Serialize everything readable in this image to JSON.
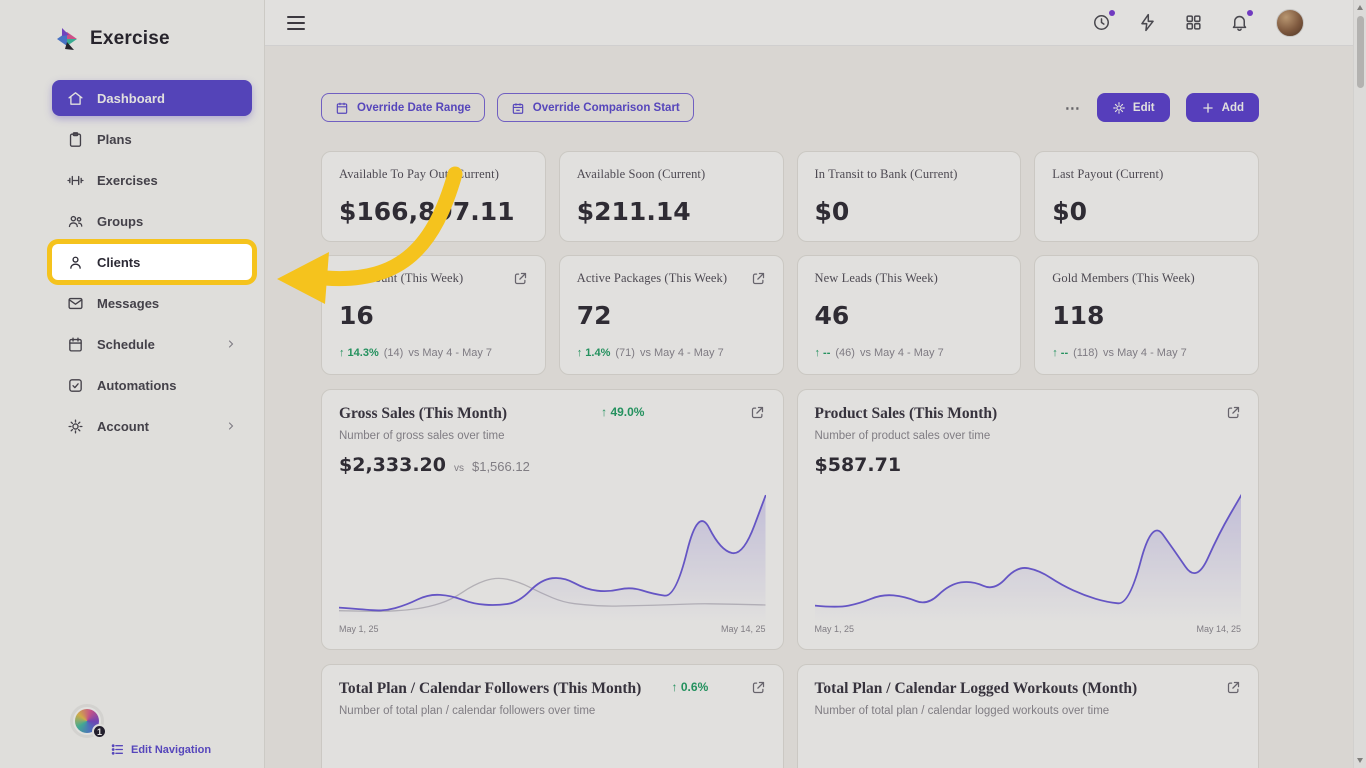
{
  "brand": {
    "name": "Exercise"
  },
  "topbar": {
    "menu_icon": "hamburger",
    "right_icons": [
      "recent-activity",
      "quick-actions",
      "apps-grid",
      "notifications"
    ],
    "notification_dot_color": "#7a3bdc"
  },
  "sidebar": {
    "items": [
      {
        "label": "Dashboard",
        "icon": "home",
        "active": true
      },
      {
        "label": "Plans",
        "icon": "clipboard"
      },
      {
        "label": "Exercises",
        "icon": "dumbbell"
      },
      {
        "label": "Groups",
        "icon": "users"
      },
      {
        "label": "Clients",
        "icon": "person",
        "highlighted": true
      },
      {
        "label": "Messages",
        "icon": "mail"
      },
      {
        "label": "Schedule",
        "icon": "calendar",
        "has_submenu": true
      },
      {
        "label": "Automations",
        "icon": "check-square"
      },
      {
        "label": "Account",
        "icon": "gear",
        "has_submenu": true
      }
    ],
    "footer": {
      "badge": "1",
      "edit_navigation_label": "Edit Navigation"
    }
  },
  "toolbar": {
    "override_date_range": "Override Date Range",
    "override_comparison_start": "Override Comparison Start",
    "more_label": "⋯",
    "edit_label": "Edit",
    "add_label": "Add",
    "accent_color": "#5b3fd6"
  },
  "stats_row1": [
    {
      "title": "Available To Pay Out (Current)",
      "value": "$166,897.11"
    },
    {
      "title": "Available Soon (Current)",
      "value": "$211.14"
    },
    {
      "title": "In Transit to Bank (Current)",
      "value": "$0"
    },
    {
      "title": "Last Payout (Current)",
      "value": "$0"
    }
  ],
  "stats_row2": [
    {
      "title": "Visit Count (This Week)",
      "value": "16",
      "delta": "↑ 14.3%",
      "detail": "(14)",
      "compare": "vs May 4 - May 7"
    },
    {
      "title": "Active Packages (This Week)",
      "value": "72",
      "delta": "↑ 1.4%",
      "detail": "(71)",
      "compare": "vs May 4 - May 7"
    },
    {
      "title": "New Leads (This Week)",
      "value": "46",
      "delta": "↑ --",
      "detail": "(46)",
      "compare": "vs May 4 - May 7"
    },
    {
      "title": "Gold Members (This Week)",
      "value": "118",
      "delta": "↑ --",
      "detail": "(118)",
      "compare": "vs May 4 - May 7"
    }
  ],
  "chart_data": [
    {
      "type": "line",
      "title": "Gross Sales (This Month)",
      "subtitle": "Number of gross sales over time",
      "delta": "↑ 49.0%",
      "value": "$2,333.20",
      "vs_label": "vs",
      "vs_value": "$1,566.12",
      "x_start": "May 1, 25",
      "x_end": "May 14, 25",
      "ylim": [
        0,
        500
      ],
      "line_color": "#6c5be0",
      "compare_color": "#c9c7cf",
      "series": [
        {
          "name": "current",
          "values": [
            40,
            34,
            26,
            50,
            92,
            86,
            54,
            48,
            60,
            148,
            158,
            110,
            100,
            120,
            92,
            80,
            430,
            260,
            240,
            470
          ]
        },
        {
          "name": "previous",
          "values": [
            28,
            26,
            25,
            30,
            42,
            70,
            128,
            158,
            140,
            96,
            60,
            50,
            45,
            47,
            49,
            52,
            55,
            54,
            52,
            50
          ]
        }
      ]
    },
    {
      "type": "line",
      "title": "Product Sales (This Month)",
      "subtitle": "Number of product sales over time",
      "delta": "",
      "value": "$587.71",
      "x_start": "May 1, 25",
      "x_end": "May 14, 25",
      "ylim": [
        0,
        230
      ],
      "line_color": "#6c5be0",
      "series": [
        {
          "name": "current",
          "values": [
            22,
            18,
            26,
            42,
            38,
            22,
            60,
            66,
            48,
            92,
            84,
            58,
            40,
            28,
            24,
            175,
            120,
            62,
            150,
            218
          ]
        }
      ]
    }
  ],
  "bottom_cards": [
    {
      "title": "Total Plan / Calendar Followers (This Month)",
      "delta": "↑ 0.6%",
      "subtitle": "Number of total plan / calendar followers over time"
    },
    {
      "title": "Total Plan / Calendar Logged Workouts (Month)",
      "delta": "",
      "subtitle": "Number of total plan / calendar logged workouts over time"
    }
  ],
  "annotation": {
    "highlighted_item": "Clients",
    "highlight_color": "#F5C31D"
  }
}
